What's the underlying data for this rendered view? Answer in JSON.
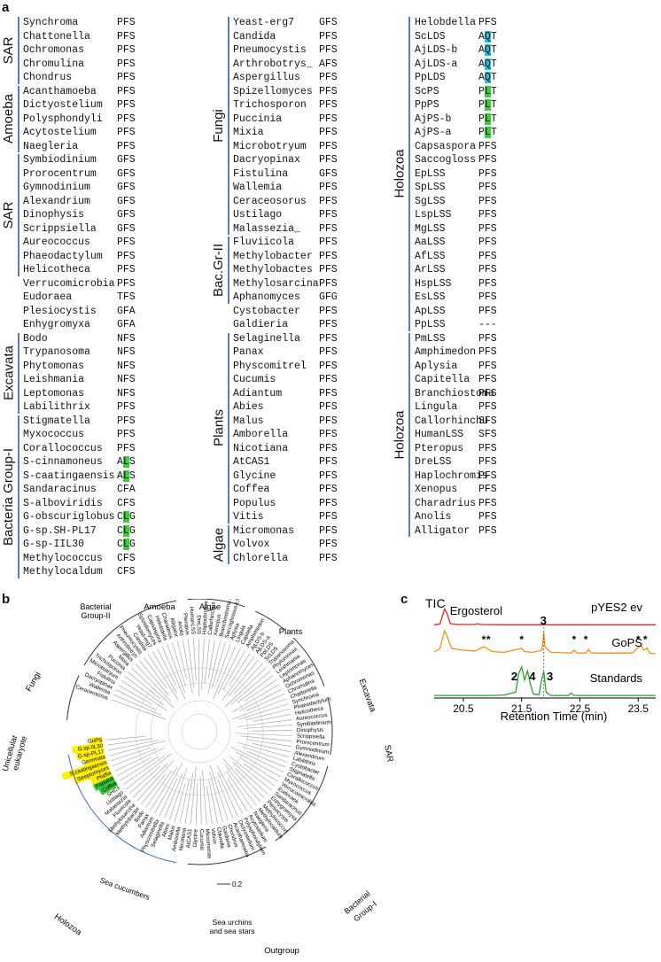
{
  "panel_a": {
    "label": "a",
    "columns": [
      {
        "rows": [
          [
            "Synchroma",
            "PFS"
          ],
          [
            "Chattonella",
            "PFS"
          ],
          [
            "Ochromonas",
            "PFS"
          ],
          [
            "Chromulina",
            "PFS"
          ],
          [
            "Chondrus",
            "PFS"
          ],
          [
            "Acanthamoeba",
            "PFS"
          ],
          [
            "Dictyostelium",
            "PFS"
          ],
          [
            "Polysphondyli",
            "PFS"
          ],
          [
            "Acytostelium",
            "PFS"
          ],
          [
            "Naegleria",
            "PFS"
          ],
          [
            "Symbiodinium",
            "GFS"
          ],
          [
            "Prorocentrum",
            "GFS"
          ],
          [
            "Gymnodinium",
            "GFS"
          ],
          [
            "Alexandrium",
            "GFS"
          ],
          [
            "Dinophysis",
            "GFS"
          ],
          [
            "Scrippsiella",
            "GFS"
          ],
          [
            "Aureococcus",
            "PFS"
          ],
          [
            "Phaeodactylum",
            "PFS"
          ],
          [
            "Helicotheca",
            "PFS"
          ],
          [
            "Verrucomicrobia",
            "PFS"
          ],
          [
            "Eudoraea",
            "TFS"
          ],
          [
            "Plesiocystis",
            "GFA"
          ],
          [
            "Enhygromyxa",
            "GFA"
          ],
          [
            "Bodo",
            "NFS"
          ],
          [
            "Trypanosoma",
            "NFS"
          ],
          [
            "Phytomonas",
            "NFS"
          ],
          [
            "Leishmania",
            "NFS"
          ],
          [
            "Leptomonas",
            "NFS"
          ],
          [
            "Labilithrix",
            "PFS"
          ],
          [
            "Stigmatella",
            "PFS"
          ],
          [
            "Myxococcus",
            "PFS"
          ],
          [
            "Corallococcus",
            "PFS"
          ],
          [
            "S-cinnamoneus",
            "ALS"
          ],
          [
            "S-caatingaensis",
            "ALS"
          ],
          [
            "Sandaracinus",
            "CFA"
          ],
          [
            "S-alboviridis",
            "CFS"
          ],
          [
            "G-obscuriglobus",
            "CLG"
          ],
          [
            "G-sp.SH-PL17",
            "CLG"
          ],
          [
            "G-sp-IIL30",
            "CLG"
          ],
          [
            "Methylococcus",
            "CFS"
          ],
          [
            "Methylocaldum",
            "CFS"
          ]
        ],
        "groups": [
          {
            "label": "SAR",
            "start": 0,
            "end": 4
          },
          {
            "label": "Amoeba",
            "start": 5,
            "end": 9
          },
          {
            "label": "SAR",
            "start": 10,
            "end": 18
          },
          {
            "label": "Excavata",
            "start": 23,
            "end": 28
          },
          {
            "label": "Bacteria Group-I",
            "start": 29,
            "end": 40
          }
        ]
      },
      {
        "rows": [
          [
            "Yeast-erg7",
            "GFS"
          ],
          [
            "Candida",
            "PFS"
          ],
          [
            "Pneumocystis",
            "PFS"
          ],
          [
            "Arthrobotrys_",
            "AFS"
          ],
          [
            "Aspergillus",
            "PFS"
          ],
          [
            "Spizellomyces",
            "PFS"
          ],
          [
            "Trichosporon",
            "PFS"
          ],
          [
            "Puccinia",
            "PFS"
          ],
          [
            "Mixia",
            "PFS"
          ],
          [
            "Microbotryum",
            "PFS"
          ],
          [
            "Dacryopinax",
            "PFS"
          ],
          [
            "Fistulina",
            "GFS"
          ],
          [
            "Wallemia",
            "PFS"
          ],
          [
            "Ceraceosorus",
            "PFS"
          ],
          [
            "Ustilago",
            "PFS"
          ],
          [
            "Malassezia_",
            "PFS"
          ],
          [
            "Fluviicola",
            "PFS"
          ],
          [
            "Methylobacter",
            "PFS"
          ],
          [
            "Methylobactes",
            "PFS"
          ],
          [
            "Methylosarcina",
            "PFS"
          ],
          [
            "Aphanomyces",
            "GFG"
          ],
          [
            "Cystobacter",
            "PFS"
          ],
          [
            "Galdieria",
            "PFS"
          ],
          [
            "Selaginella",
            "PFS"
          ],
          [
            "Panax",
            "PFS"
          ],
          [
            "Physcomitrel",
            "PFS"
          ],
          [
            "Cucumis",
            "PFS"
          ],
          [
            "Adiantum",
            "PFS"
          ],
          [
            "Abies",
            "PFS"
          ],
          [
            "Malus",
            "PFS"
          ],
          [
            "Amborella",
            "PFS"
          ],
          [
            "Nicotiana",
            "PFS"
          ],
          [
            "AtCAS1",
            "PFS"
          ],
          [
            "Glycine",
            "PFS"
          ],
          [
            "Coffea",
            "PFS"
          ],
          [
            "Populus",
            "PFS"
          ],
          [
            "Vitis",
            "PFS"
          ],
          [
            "Micromonas",
            "PFS"
          ],
          [
            "Volvox",
            "PFS"
          ],
          [
            "Chlorella",
            "PFS"
          ]
        ],
        "groups": [
          {
            "label": "Fungi",
            "start": 0,
            "end": 15
          },
          {
            "label": "Bac.Gr-II",
            "start": 16,
            "end": 20
          },
          {
            "label": "Plants",
            "start": 23,
            "end": 36
          },
          {
            "label": "Algae",
            "start": 37,
            "end": 39
          }
        ]
      },
      {
        "rows": [
          [
            "Helobdella",
            "PFS"
          ],
          [
            "ScLDS",
            "AQT"
          ],
          [
            "AjLDS-b",
            "AQT"
          ],
          [
            "AjLDS-a",
            "AQT"
          ],
          [
            "PpLDS",
            "AQT"
          ],
          [
            "ScPS",
            "PLT"
          ],
          [
            "PpPS",
            "PLT"
          ],
          [
            "AjPS-b",
            "PLT"
          ],
          [
            "AjPS-a",
            "PLT"
          ],
          [
            "Capsaspora",
            "PFS"
          ],
          [
            "Saccogloss",
            "PFS"
          ],
          [
            "EpLSS",
            "PFS"
          ],
          [
            "SpLSS",
            "PFS"
          ],
          [
            "SgLSS",
            "PFS"
          ],
          [
            "LspLSS",
            "PFS"
          ],
          [
            "MgLSS",
            "PFS"
          ],
          [
            "AaLSS",
            "PFS"
          ],
          [
            "AfLSS",
            "PFS"
          ],
          [
            "ArLSS",
            "PFS"
          ],
          [
            "HspLSS",
            "PFS"
          ],
          [
            "EsLSS",
            "PFS"
          ],
          [
            "ApLSS",
            "PFS"
          ],
          [
            "PpLSS",
            "---"
          ],
          [
            "PmLSS",
            "PFS"
          ],
          [
            "Amphimedon",
            "PFS"
          ],
          [
            "Aplysia",
            "PFS"
          ],
          [
            "Capitella",
            "PFS"
          ],
          [
            "Branchiostoma",
            "PFS"
          ],
          [
            "Lingula",
            "PFS"
          ],
          [
            "Callorhinchu",
            "SFS"
          ],
          [
            "HumanLSS",
            "SFS"
          ],
          [
            "Pteropus",
            "PFS"
          ],
          [
            "DreLSS",
            "PFS"
          ],
          [
            "Haplochromis",
            "PFS"
          ],
          [
            "Xenopus",
            "PFS"
          ],
          [
            "Charadrius",
            "PFS"
          ],
          [
            "Anolis",
            "PFS"
          ],
          [
            "Alligator",
            "PFS"
          ]
        ],
        "groups": [
          {
            "label": "Holozoa",
            "start": 0,
            "end": 22
          },
          {
            "label": "Holozoa",
            "start": 23,
            "end": 37
          }
        ]
      }
    ]
  },
  "panel_b": {
    "label": "b",
    "clade_labels": [
      "Bacterial Group-II",
      "Amoeba",
      "Algae",
      "Plants",
      "Fungi",
      "Excavata",
      "SAR",
      "Unicellular eukaryote",
      "Holozoa",
      "Sea cucumbers",
      "Sea urchins and sea stars",
      "Bacterial Group-I",
      "Outgroup"
    ],
    "scale_value": "0.2",
    "highlighted_leaves": [
      "Coffea",
      "Populus",
      "Pfaffia",
      "Streptomyces",
      "S.caatingaensis",
      "Gemmata",
      "G-sp-PL17",
      "G.sp.IIL30",
      "GoPS"
    ],
    "leaf_labels_sample": [
      "Ceraceosorus",
      "Wallemia",
      "Dacryopinax",
      "Fistulina",
      "Microbotryum",
      "Trichosporon",
      "Puccinia",
      "Mixia",
      "Aspergillus",
      "Arthrobotrys",
      "Pneumocystis",
      "Candida",
      "Yeast-erg7",
      "Spizellomyces",
      "Capsaspora",
      "Helobdella",
      "Charadrius",
      "Alligator",
      "Anolis",
      "Pteropus",
      "HumanLSS",
      "DreLSS",
      "Haplochromis",
      "Callorhinchus",
      "Xenopus",
      "Branchiostoma-LSS",
      "Saccoglossus-LSS",
      "Aplysia",
      "Lingula",
      "Capitella",
      "Amphimedon",
      "AjLDS-b",
      "AjLDS-a",
      "PpLDS",
      "ScLDS",
      "Trypanosoma",
      "Phytomonas",
      "Leishmania",
      "Leptomonas",
      "Aphanomyces",
      "Ochromonas",
      "Chromulina",
      "Chattonella",
      "Synchroma",
      "Phaeodactylum",
      "Helicotheca",
      "Aureococcus",
      "Symbiodinium",
      "Dinophysis",
      "Scrippsiella",
      "Prorocentrum",
      "Gymnodinium",
      "Alexandrium",
      "Labilithrix",
      "Cystobacter",
      "Stigmatella",
      "Corallococcus",
      "Myxococcus",
      "Verrucomicrobia",
      "Eudoraea",
      "Sandaracinus",
      "Enhygromyxa",
      "Plesiocystis",
      "Methylococcus",
      "Methylocaldum",
      "Naegleria",
      "Acytostelium",
      "Polysphondylium",
      "Dictyostelium",
      "Acanthamoeba",
      "Chondrus",
      "Galdieria",
      "Chlorella",
      "Volvox",
      "Micromonas",
      "Cucumis",
      "Glycine",
      "AtCAS1",
      "Nicotiana",
      "Amborella",
      "Malus",
      "Abies",
      "Selaginella",
      "Physcomitrella",
      "Adiantum",
      "Panax",
      "Bodo",
      "Methylobacter",
      "Methylosarcina",
      "Fluviicola",
      "Malassezia",
      "Ustilago",
      "SHCs"
    ]
  },
  "panel_c": {
    "label": "c",
    "title": "TIC",
    "xlabel": "Retention Time (min)",
    "annotations": {
      "ergosterol": "Ergosterol",
      "peak3": "3",
      "peak2": "2",
      "peak4": "4",
      "peak3b": "3"
    },
    "chart_data": {
      "type": "line",
      "xlabel": "Retention Time (min)",
      "ylabel": "",
      "xlim": [
        20.0,
        23.8
      ],
      "xticks": [
        "20.5",
        "21.5",
        "22.5",
        "23.5"
      ],
      "xtick_values": [
        20.5,
        21.5,
        22.5,
        23.5
      ],
      "series": [
        {
          "name": "pYES2 ev",
          "color": "#d62728",
          "x": [
            20.0,
            20.1,
            20.18,
            20.22,
            20.28,
            20.4,
            20.7,
            20.75,
            20.8,
            21.2,
            21.6,
            22.0,
            22.5,
            23.0,
            23.4,
            23.8
          ],
          "y": [
            0.02,
            0.05,
            0.55,
            0.4,
            0.06,
            0.03,
            0.03,
            0.06,
            0.03,
            0.02,
            0.02,
            0.02,
            0.02,
            0.02,
            0.02,
            0.02
          ]
        },
        {
          "name": "GoPS",
          "color": "#f0901c",
          "x": [
            20.0,
            20.1,
            20.18,
            20.22,
            20.3,
            20.5,
            20.7,
            20.85,
            20.9,
            20.95,
            21.0,
            21.2,
            21.5,
            21.55,
            21.7,
            21.85,
            21.88,
            21.9,
            22.0,
            22.35,
            22.4,
            22.45,
            22.6,
            22.65,
            22.7,
            23.0,
            23.4,
            23.5,
            23.55,
            23.6,
            23.65,
            23.7,
            23.8
          ],
          "y": [
            0.25,
            0.35,
            0.85,
            0.7,
            0.35,
            0.3,
            0.28,
            0.4,
            0.36,
            0.3,
            0.26,
            0.24,
            0.35,
            0.26,
            0.24,
            0.3,
            0.8,
            0.4,
            0.24,
            0.22,
            0.3,
            0.22,
            0.22,
            0.32,
            0.22,
            0.22,
            0.22,
            0.38,
            0.42,
            0.3,
            0.36,
            0.22,
            0.2
          ]
        },
        {
          "name": "Standards",
          "color": "#2ca02c",
          "x": [
            20.0,
            20.3,
            20.6,
            21.0,
            21.2,
            21.4,
            21.45,
            21.5,
            21.55,
            21.6,
            21.65,
            21.7,
            21.8,
            21.85,
            21.88,
            21.92,
            22.0,
            22.3,
            22.35,
            22.4,
            22.6,
            23.0,
            23.8
          ],
          "y": [
            0.02,
            0.02,
            0.02,
            0.02,
            0.03,
            0.1,
            0.55,
            0.72,
            0.4,
            0.62,
            0.3,
            0.05,
            0.04,
            0.45,
            0.6,
            0.1,
            0.02,
            0.02,
            0.08,
            0.02,
            0.02,
            0.02,
            0.02
          ]
        }
      ],
      "star_markers": [
        20.85,
        20.93,
        21.5,
        22.4,
        22.6,
        23.5,
        23.62
      ]
    }
  }
}
